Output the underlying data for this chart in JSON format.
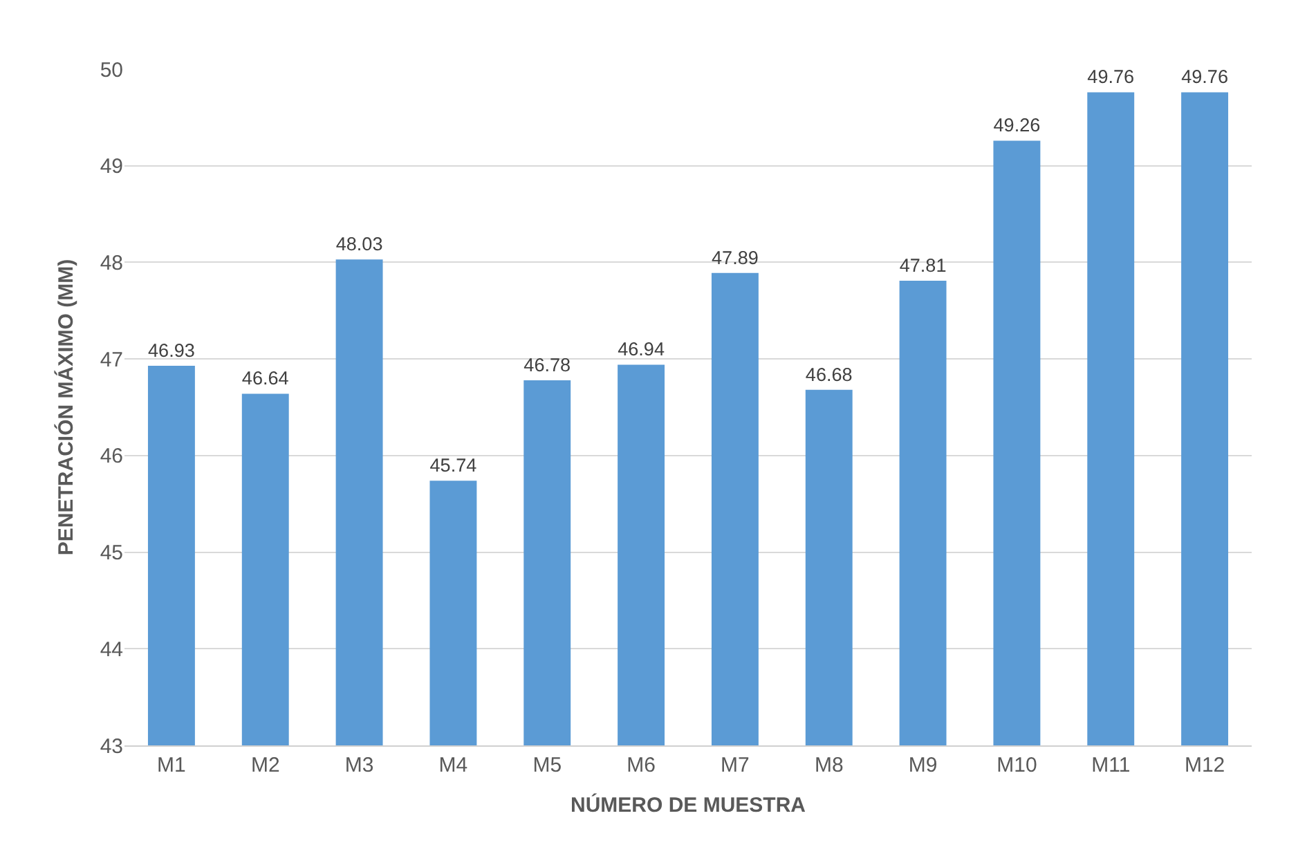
{
  "chart_data": {
    "type": "bar",
    "xlabel": "NÚMERO DE MUESTRA",
    "ylabel": "PENETRACIÓN MÁXIMO (MM)",
    "categories": [
      "M1",
      "M2",
      "M3",
      "M4",
      "M5",
      "M6",
      "M7",
      "M8",
      "M9",
      "M10",
      "M11",
      "M12"
    ],
    "values": [
      46.93,
      46.64,
      48.03,
      45.74,
      46.78,
      46.94,
      47.89,
      46.68,
      47.81,
      49.26,
      49.76,
      49.76
    ],
    "color": "#5b9bd5",
    "ylim": [
      43,
      50
    ],
    "yticks": [
      43,
      44,
      45,
      46,
      47,
      48,
      49,
      50
    ],
    "grid": "y",
    "data_labels": true
  }
}
